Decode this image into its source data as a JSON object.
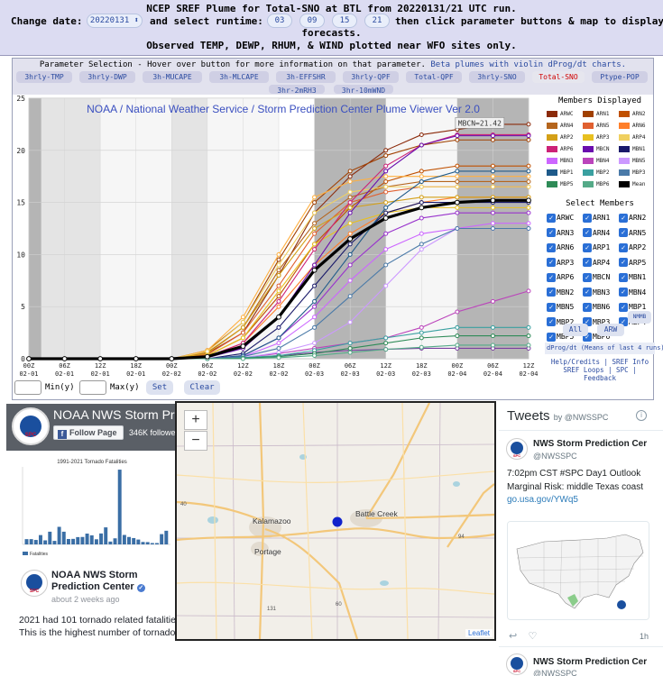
{
  "header": {
    "line1": "NCEP SREF Plume for Total-SNO at BTL from 20220131/21 UTC run.",
    "change_date_label": "Change date:",
    "date_value": "20220131 ⬍",
    "runtime_label": "and select runtime:",
    "runtimes": [
      "03",
      "09",
      "15",
      "21"
    ],
    "line1b_tail": "then click parameter buttons & map to display",
    "line2": "forecasts.",
    "line3": "Observed TEMP, DEWP, RHUM, & WIND plotted near WFO sites only."
  },
  "param_selection": {
    "title": "Parameter Selection - Hover over button for more information on that parameter.",
    "link": "Beta plumes with violin dProg/dt charts.",
    "buttons": [
      "3hrly-TMP",
      "3hrly-DWP",
      "3h-MUCAPE",
      "3h-MLCAPE",
      "3h-EFFSHR",
      "3hrly-QPF",
      "Total-QPF",
      "3hrly-SNO",
      "Total-SNO",
      "Ptype-POP",
      "3hr-2mRH3",
      "3hr-10mWND"
    ],
    "selected": "Total-SNO"
  },
  "plot": {
    "title": "NOAA / National Weather Service / Storm Prediction Center Plume Viewer Ver 2.0",
    "tooltip": "MBCN=21.42"
  },
  "chart_data": {
    "type": "line",
    "x": [
      "00Z 02-01",
      "06Z 02-01",
      "12Z 02-01",
      "18Z 02-01",
      "00Z 02-02",
      "06Z 02-02",
      "12Z 02-02",
      "18Z 02-02",
      "00Z 02-03",
      "06Z 02-03",
      "12Z 02-03",
      "18Z 02-03",
      "00Z 02-04",
      "06Z 02-04",
      "12Z 02-04"
    ],
    "ylim": [
      0,
      25
    ],
    "yticks": [
      0,
      5,
      10,
      15,
      20,
      25
    ],
    "xlabel": "",
    "ylabel": "",
    "series": [
      {
        "name": "ARWC",
        "color": "#8b2a0a",
        "values": [
          0,
          0,
          0,
          0,
          0,
          0.5,
          2.5,
          8,
          14,
          17.5,
          20,
          21.5,
          22,
          22.5,
          22.5
        ]
      },
      {
        "name": "ARN1",
        "color": "#a04000",
        "values": [
          0,
          0,
          0,
          0,
          0,
          0.8,
          3.5,
          9.5,
          15,
          18,
          19.5,
          20.5,
          21,
          21,
          21
        ]
      },
      {
        "name": "ARN2",
        "color": "#c05000",
        "values": [
          0,
          0,
          0,
          0,
          0,
          0.3,
          2,
          6,
          11,
          14.5,
          17,
          18,
          18.5,
          18.5,
          18.5
        ]
      },
      {
        "name": "ARN4",
        "color": "#b5651d",
        "values": [
          0,
          0,
          0,
          0,
          0,
          0.6,
          3,
          8.5,
          13,
          15.5,
          16.5,
          17,
          17,
          17,
          17
        ]
      },
      {
        "name": "ARN5",
        "color": "#e06030",
        "values": [
          0,
          0,
          0,
          0,
          0,
          0.4,
          2.5,
          7,
          12,
          15,
          16,
          16.5,
          16.5,
          16.5,
          16.5
        ]
      },
      {
        "name": "ARN6",
        "color": "#ff7f2a",
        "values": [
          0,
          0,
          0,
          0,
          0,
          0.2,
          1.5,
          5,
          9,
          12,
          14,
          15,
          15.5,
          15.5,
          15.5
        ]
      },
      {
        "name": "ARP1",
        "color": "#ffb040",
        "values": [
          0,
          0,
          0,
          0,
          0,
          0.8,
          4,
          10,
          15.5,
          17,
          17.5,
          17.5,
          17.5,
          17.5,
          17.5
        ]
      },
      {
        "name": "ARP2",
        "color": "#d4a017",
        "values": [
          0,
          0,
          0,
          0,
          0,
          0.5,
          3,
          8,
          12.5,
          14.5,
          15,
          15.5,
          15.5,
          15.5,
          15.5
        ]
      },
      {
        "name": "ARP3",
        "color": "#e8c020",
        "values": [
          0,
          0,
          0,
          0,
          0,
          0.3,
          2,
          6.5,
          11,
          13,
          14,
          14.5,
          14.5,
          14.5,
          14.5
        ]
      },
      {
        "name": "ARP4",
        "color": "#f0d060",
        "values": [
          0,
          0,
          0,
          0,
          0,
          0.7,
          3.5,
          9,
          14,
          16,
          16.5,
          16.5,
          16.5,
          16.5,
          16.5
        ]
      },
      {
        "name": "ARP6",
        "color": "#cc2277",
        "values": [
          0,
          0,
          0,
          0,
          0,
          0.2,
          1.5,
          5.5,
          10.5,
          15,
          18.5,
          20.5,
          21.5,
          21.5,
          21.5
        ]
      },
      {
        "name": "MBCN",
        "color": "#6a0dad",
        "values": [
          0,
          0,
          0,
          0,
          0,
          0.1,
          1,
          4,
          9,
          14,
          18,
          20.5,
          21.4,
          21.4,
          21.4
        ]
      },
      {
        "name": "MBN1",
        "color": "#1a1a6a",
        "values": [
          0,
          0,
          0,
          0,
          0,
          0,
          0.5,
          3,
          7,
          11,
          14,
          15,
          15,
          15,
          15
        ]
      },
      {
        "name": "MBN2",
        "color": "#9933cc",
        "values": [
          0,
          0,
          0,
          0,
          0,
          0,
          0.3,
          2,
          5,
          9,
          12,
          13.5,
          14,
          14,
          14
        ]
      },
      {
        "name": "MBN3",
        "color": "#cc66ff",
        "values": [
          0,
          0,
          0,
          0,
          0,
          0,
          0.2,
          1.5,
          4,
          7.5,
          10.5,
          12,
          12.5,
          13,
          13
        ]
      },
      {
        "name": "MBN4",
        "color": "#bb44bb",
        "values": [
          0,
          0,
          0,
          0,
          0,
          0,
          0.1,
          0.5,
          1,
          1.5,
          2,
          3,
          4.5,
          5.5,
          6.5
        ]
      },
      {
        "name": "MBN5",
        "color": "#cc99ff",
        "values": [
          0,
          0,
          0,
          0,
          0,
          0,
          0.1,
          0.6,
          1.5,
          3.5,
          7,
          10.5,
          12.5,
          12.5,
          12.5
        ]
      },
      {
        "name": "MBN6",
        "color": "#7b3fa0",
        "values": [
          0,
          0,
          0,
          0,
          0,
          0,
          0.05,
          0.3,
          0.6,
          0.8,
          0.9,
          1,
          1,
          1,
          1
        ]
      },
      {
        "name": "MBP1",
        "color": "#1e5a8a",
        "values": [
          0,
          0,
          0,
          0,
          0,
          0,
          0.3,
          2,
          5.5,
          10,
          14.5,
          17,
          18,
          18,
          18
        ]
      },
      {
        "name": "MBP2",
        "color": "#3aa0a0",
        "values": [
          0,
          0,
          0,
          0,
          0,
          0,
          0.1,
          0.3,
          0.8,
          1.5,
          2,
          2.5,
          3,
          3,
          3
        ]
      },
      {
        "name": "MBP3",
        "color": "#4a7aa8",
        "values": [
          0,
          0,
          0,
          0,
          0,
          0,
          0.2,
          1,
          3,
          6,
          9,
          11,
          12.5,
          12.5,
          12.5
        ]
      },
      {
        "name": "MBP5",
        "color": "#2e8b57",
        "values": [
          0,
          0,
          0,
          0,
          0,
          0,
          0.05,
          0.2,
          0.5,
          1,
          1.5,
          2,
          2.2,
          2.2,
          2.2
        ]
      },
      {
        "name": "MBP6",
        "color": "#55aa88",
        "values": [
          0,
          0,
          0,
          0,
          0,
          0,
          0,
          0.1,
          0.3,
          0.6,
          0.9,
          1.1,
          1.3,
          1.3,
          1.3
        ]
      },
      {
        "name": "Mean",
        "color": "#000000",
        "values": [
          0,
          0,
          0,
          0,
          0,
          0.2,
          1.2,
          4,
          8.5,
          11.5,
          13.5,
          14.5,
          15,
          15.2,
          15.2
        ]
      }
    ]
  },
  "members_panel": {
    "displayed_title": "Members Displayed",
    "legend": [
      {
        "name": "ARWC",
        "color": "#8b2a0a"
      },
      {
        "name": "ARN1",
        "color": "#a04000"
      },
      {
        "name": "ARN2",
        "color": "#c05000"
      },
      {
        "name": "ARN4",
        "color": "#b5651d"
      },
      {
        "name": "ARN5",
        "color": "#e06030"
      },
      {
        "name": "ARN6",
        "color": "#ff7f2a"
      },
      {
        "name": "ARP2",
        "color": "#d4a017"
      },
      {
        "name": "ARP3",
        "color": "#e8c020"
      },
      {
        "name": "ARP4",
        "color": "#f0d060"
      },
      {
        "name": "ARP6",
        "color": "#cc2277"
      },
      {
        "name": "MBCN",
        "color": "#6a0dad"
      },
      {
        "name": "MBN1",
        "color": "#1a1a6a"
      },
      {
        "name": "MBN3",
        "color": "#cc66ff"
      },
      {
        "name": "MBN4",
        "color": "#bb44bb"
      },
      {
        "name": "MBN5",
        "color": "#cc99ff"
      },
      {
        "name": "MBP1",
        "color": "#1e5a8a"
      },
      {
        "name": "MBP2",
        "color": "#3aa0a0"
      },
      {
        "name": "MBP3",
        "color": "#4a7aa8"
      },
      {
        "name": "MBP5",
        "color": "#2e8b57"
      },
      {
        "name": "MBP6",
        "color": "#55aa88"
      },
      {
        "name": "Mean",
        "color": "#000000"
      }
    ],
    "select_title": "Select Members",
    "checkboxes": [
      "ARWC",
      "ARN1",
      "ARN2",
      "ARN3",
      "ARN4",
      "ARN5",
      "ARN6",
      "ARP1",
      "ARP2",
      "ARP3",
      "ARP4",
      "ARP5",
      "ARP6",
      "MBCN",
      "MBN1",
      "MBN2",
      "MBN3",
      "MBN4",
      "MBN5",
      "MBN6",
      "MBP1",
      "MBP2",
      "MBP3",
      "MBP4",
      "MBP5",
      "MBP6"
    ],
    "all_label": "All",
    "arw_label": "ARW",
    "nmmb_label": "NMMB",
    "dprog_label": "dProg/dt (Means of last 4 runs)",
    "help_line1": "Help/Credits | SREF Info",
    "help_line2": "SREF Loops | SPC |",
    "help_line3": "Feedback"
  },
  "minmax": {
    "min_label": "Min(y)",
    "max_label": "Max(y)",
    "set_label": "Set",
    "clear_label": "Clear"
  },
  "facebook": {
    "page_name": "NOAA NWS Storm Pr...",
    "follow_label": "Follow Page",
    "followers": "346K followers",
    "chart_title": "1991-2021 Tornado Fatalities",
    "chart_legend": "Fatalities",
    "post_name": "NOAA NWS Storm Prediction Center",
    "post_time": "about 2 weeks ago",
    "post_line1": "2021 had 101 tornado related fatalities",
    "post_line2": "This is the highest number of tornado"
  },
  "map": {
    "zoom_in": "+",
    "zoom_out": "−",
    "cities": [
      "Kalamazoo",
      "Battle Creek",
      "Portage"
    ],
    "roads": [
      "40",
      "94",
      "60",
      "131"
    ],
    "attribution": "Leaflet"
  },
  "tweets": {
    "header": "Tweets",
    "by": "by @NWSSPC",
    "name": "NWS Storm Prediction Cer",
    "handle": "@NWSSPC",
    "line1": "7:02pm CST #SPC Day1 Outlook",
    "line2": "Marginal Risk: middle Texas coast",
    "link": "go.usa.gov/YWq5",
    "time": "1h",
    "name2": "NWS Storm Prediction Cer",
    "handle2": "@NWSSPC",
    "spc_label": "SPC"
  }
}
